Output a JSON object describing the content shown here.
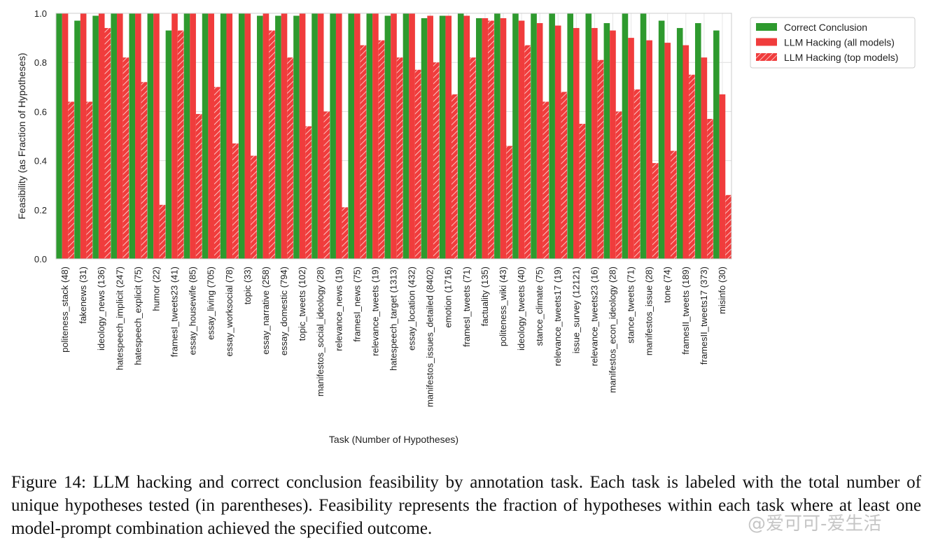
{
  "chart_data": {
    "type": "bar",
    "xlabel": "Task (Number of Hypotheses)",
    "ylabel": "Feasibility (as Fraction of Hypotheses)",
    "ylim": [
      0,
      1.0
    ],
    "yticks": [
      "0.0",
      "0.2",
      "0.4",
      "0.6",
      "0.8",
      "1.0"
    ],
    "grid": "on",
    "legend_position": "top-right",
    "categories": [
      "politeness_stack (48)",
      "fakenews (31)",
      "ideology_news (136)",
      "hatespeech_implicit (247)",
      "hatespeech_explicit (75)",
      "humor (22)",
      "framesI_tweets23 (41)",
      "essay_housewife (85)",
      "essay_living (705)",
      "essay_worksocial (78)",
      "topic (33)",
      "essay_narrative (258)",
      "essay_domestic (794)",
      "topic_tweets (102)",
      "manifestos_social_ideology (28)",
      "relevance_news (19)",
      "framesI_news (75)",
      "relevance_tweets (19)",
      "hatespeech_target (1313)",
      "essay_location (432)",
      "manifestos_issues_detailed (8402)",
      "emotion (1716)",
      "framesI_tweets (71)",
      "factuality (135)",
      "politeness_wiki (43)",
      "ideology_tweets (40)",
      "stance_climate (75)",
      "relevance_tweets17 (19)",
      "issue_survey (12121)",
      "relevance_tweets23 (16)",
      "manifestos_econ_ideology (28)",
      "stance_tweets (71)",
      "manifestos_issue (28)",
      "tone (74)",
      "framesII_tweets (189)",
      "framesII_tweets17 (373)",
      "misinfo (30)"
    ],
    "series": [
      {
        "name": "Correct Conclusion",
        "color": "#2e9a2e",
        "pattern": "solid",
        "values": [
          1.0,
          0.97,
          0.99,
          1.0,
          1.0,
          1.0,
          0.93,
          1.0,
          1.0,
          1.0,
          1.0,
          0.99,
          0.99,
          0.99,
          1.0,
          1.0,
          1.0,
          1.0,
          0.99,
          1.0,
          0.98,
          0.99,
          1.0,
          0.98,
          1.0,
          1.0,
          1.0,
          1.0,
          1.0,
          1.0,
          0.96,
          1.0,
          1.0,
          0.97,
          0.94,
          0.96,
          0.93
        ]
      },
      {
        "name": "LLM Hacking (all models)",
        "color": "#f03c3c",
        "pattern": "solid",
        "values": [
          1.0,
          1.0,
          1.0,
          1.0,
          1.0,
          1.0,
          1.0,
          1.0,
          1.0,
          1.0,
          1.0,
          1.0,
          1.0,
          1.0,
          1.0,
          1.0,
          1.0,
          1.0,
          1.0,
          1.0,
          0.99,
          0.99,
          0.99,
          0.98,
          0.98,
          0.97,
          0.96,
          0.95,
          0.94,
          0.94,
          0.93,
          0.9,
          0.89,
          0.88,
          0.87,
          0.82,
          0.67
        ]
      },
      {
        "name": "LLM Hacking (top models)",
        "color": "#f03c3c",
        "pattern": "hatched",
        "values": [
          0.64,
          0.64,
          0.94,
          0.82,
          0.72,
          0.22,
          0.93,
          0.59,
          0.7,
          0.47,
          0.42,
          0.93,
          0.82,
          0.54,
          0.6,
          0.21,
          0.87,
          0.89,
          0.82,
          0.77,
          0.8,
          0.67,
          0.82,
          0.97,
          0.46,
          0.87,
          0.64,
          0.68,
          0.55,
          0.81,
          0.6,
          0.69,
          0.39,
          0.44,
          0.75,
          0.57,
          0.26
        ]
      }
    ]
  },
  "caption": "Figure 14: LLM hacking and correct conclusion feasibility by annotation task. Each task is labeled with the total number of unique hypotheses tested (in parentheses). Feasibility represents the fraction of hypotheses within each task where at least one model-prompt combination achieved the specified outcome.",
  "watermark": "@爱可可-爱生活"
}
